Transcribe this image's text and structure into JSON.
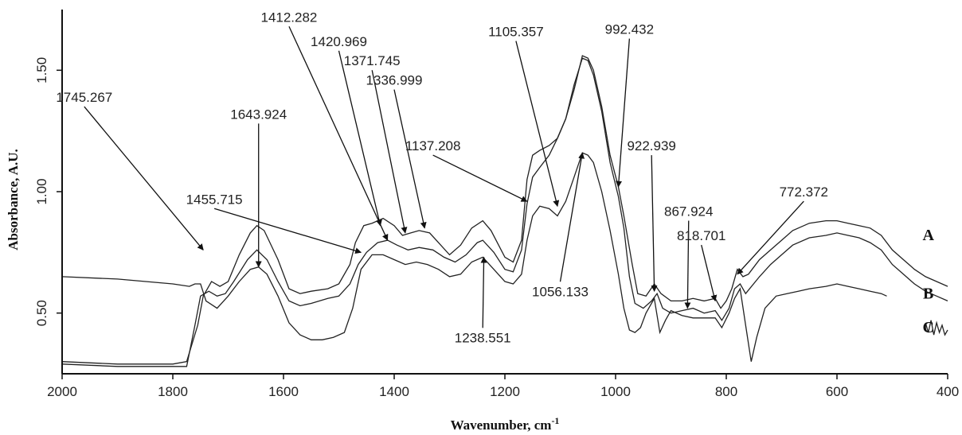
{
  "chart_data": {
    "type": "line",
    "xlabel": "Wavenumber, cm",
    "xlabel_superscript": "-1",
    "ylabel": "Absorbance, A.U.",
    "xlim": [
      2000,
      400
    ],
    "ylim": [
      0.25,
      1.75
    ],
    "x_ticks": [
      "2000",
      "1800",
      "1600",
      "1400",
      "1200",
      "1000",
      "800",
      "600",
      "400"
    ],
    "y_ticks": [
      "0.50",
      "1.00",
      "1.50"
    ],
    "grid": false,
    "series": [
      {
        "name": "A",
        "points": [
          [
            2000,
            0.3
          ],
          [
            1900,
            0.29
          ],
          [
            1800,
            0.29
          ],
          [
            1775,
            0.3
          ],
          [
            1755,
            0.45
          ],
          [
            1745,
            0.57
          ],
          [
            1730,
            0.63
          ],
          [
            1715,
            0.61
          ],
          [
            1700,
            0.63
          ],
          [
            1680,
            0.74
          ],
          [
            1660,
            0.83
          ],
          [
            1648,
            0.86
          ],
          [
            1635,
            0.84
          ],
          [
            1610,
            0.72
          ],
          [
            1590,
            0.6
          ],
          [
            1570,
            0.58
          ],
          [
            1550,
            0.59
          ],
          [
            1520,
            0.6
          ],
          [
            1500,
            0.62
          ],
          [
            1480,
            0.7
          ],
          [
            1470,
            0.79
          ],
          [
            1455,
            0.86
          ],
          [
            1440,
            0.87
          ],
          [
            1420,
            0.89
          ],
          [
            1400,
            0.86
          ],
          [
            1385,
            0.82
          ],
          [
            1370,
            0.83
          ],
          [
            1355,
            0.84
          ],
          [
            1336,
            0.83
          ],
          [
            1320,
            0.79
          ],
          [
            1300,
            0.74
          ],
          [
            1280,
            0.78
          ],
          [
            1260,
            0.85
          ],
          [
            1240,
            0.88
          ],
          [
            1225,
            0.84
          ],
          [
            1200,
            0.73
          ],
          [
            1185,
            0.71
          ],
          [
            1170,
            0.8
          ],
          [
            1160,
            1.05
          ],
          [
            1150,
            1.15
          ],
          [
            1137,
            1.17
          ],
          [
            1120,
            1.19
          ],
          [
            1105,
            1.22
          ],
          [
            1090,
            1.3
          ],
          [
            1075,
            1.42
          ],
          [
            1060,
            1.56
          ],
          [
            1050,
            1.55
          ],
          [
            1040,
            1.5
          ],
          [
            1025,
            1.35
          ],
          [
            1010,
            1.15
          ],
          [
            995,
            1.02
          ],
          [
            985,
            0.9
          ],
          [
            970,
            0.7
          ],
          [
            960,
            0.58
          ],
          [
            945,
            0.57
          ],
          [
            930,
            0.62
          ],
          [
            918,
            0.58
          ],
          [
            900,
            0.55
          ],
          [
            880,
            0.55
          ],
          [
            860,
            0.56
          ],
          [
            840,
            0.55
          ],
          [
            820,
            0.56
          ],
          [
            810,
            0.52
          ],
          [
            800,
            0.55
          ],
          [
            790,
            0.6
          ],
          [
            780,
            0.68
          ],
          [
            770,
            0.65
          ],
          [
            760,
            0.66
          ],
          [
            740,
            0.72
          ],
          [
            720,
            0.76
          ],
          [
            700,
            0.8
          ],
          [
            680,
            0.84
          ],
          [
            650,
            0.87
          ],
          [
            620,
            0.88
          ],
          [
            600,
            0.88
          ],
          [
            580,
            0.87
          ],
          [
            560,
            0.86
          ],
          [
            540,
            0.85
          ],
          [
            520,
            0.82
          ],
          [
            500,
            0.76
          ],
          [
            480,
            0.72
          ],
          [
            460,
            0.68
          ],
          [
            440,
            0.65
          ],
          [
            420,
            0.63
          ],
          [
            400,
            0.61
          ]
        ]
      },
      {
        "name": "B",
        "points": [
          [
            2000,
            0.29
          ],
          [
            1900,
            0.28
          ],
          [
            1800,
            0.28
          ],
          [
            1775,
            0.28
          ],
          [
            1760,
            0.45
          ],
          [
            1750,
            0.57
          ],
          [
            1735,
            0.59
          ],
          [
            1720,
            0.57
          ],
          [
            1705,
            0.58
          ],
          [
            1690,
            0.63
          ],
          [
            1665,
            0.72
          ],
          [
            1648,
            0.76
          ],
          [
            1630,
            0.72
          ],
          [
            1610,
            0.63
          ],
          [
            1590,
            0.55
          ],
          [
            1570,
            0.53
          ],
          [
            1550,
            0.54
          ],
          [
            1520,
            0.56
          ],
          [
            1500,
            0.57
          ],
          [
            1480,
            0.62
          ],
          [
            1465,
            0.7
          ],
          [
            1450,
            0.75
          ],
          [
            1430,
            0.79
          ],
          [
            1412,
            0.8
          ],
          [
            1395,
            0.78
          ],
          [
            1375,
            0.76
          ],
          [
            1355,
            0.77
          ],
          [
            1330,
            0.76
          ],
          [
            1310,
            0.73
          ],
          [
            1290,
            0.71
          ],
          [
            1270,
            0.74
          ],
          [
            1250,
            0.79
          ],
          [
            1240,
            0.8
          ],
          [
            1220,
            0.75
          ],
          [
            1200,
            0.68
          ],
          [
            1185,
            0.67
          ],
          [
            1170,
            0.76
          ],
          [
            1160,
            0.95
          ],
          [
            1150,
            1.06
          ],
          [
            1137,
            1.1
          ],
          [
            1120,
            1.15
          ],
          [
            1105,
            1.22
          ],
          [
            1090,
            1.3
          ],
          [
            1075,
            1.44
          ],
          [
            1060,
            1.55
          ],
          [
            1050,
            1.54
          ],
          [
            1040,
            1.48
          ],
          [
            1025,
            1.33
          ],
          [
            1010,
            1.12
          ],
          [
            995,
            0.98
          ],
          [
            985,
            0.85
          ],
          [
            975,
            0.65
          ],
          [
            965,
            0.54
          ],
          [
            950,
            0.52
          ],
          [
            935,
            0.55
          ],
          [
            925,
            0.58
          ],
          [
            915,
            0.52
          ],
          [
            900,
            0.5
          ],
          [
            880,
            0.51
          ],
          [
            860,
            0.52
          ],
          [
            840,
            0.5
          ],
          [
            820,
            0.51
          ],
          [
            808,
            0.47
          ],
          [
            795,
            0.52
          ],
          [
            785,
            0.6
          ],
          [
            775,
            0.62
          ],
          [
            765,
            0.58
          ],
          [
            740,
            0.65
          ],
          [
            720,
            0.7
          ],
          [
            700,
            0.74
          ],
          [
            680,
            0.78
          ],
          [
            650,
            0.81
          ],
          [
            620,
            0.82
          ],
          [
            600,
            0.83
          ],
          [
            580,
            0.82
          ],
          [
            560,
            0.81
          ],
          [
            540,
            0.79
          ],
          [
            520,
            0.76
          ],
          [
            500,
            0.7
          ],
          [
            480,
            0.66
          ],
          [
            460,
            0.62
          ],
          [
            440,
            0.59
          ],
          [
            420,
            0.57
          ],
          [
            400,
            0.55
          ]
        ]
      },
      {
        "name": "C",
        "points": [
          [
            2000,
            0.65
          ],
          [
            1900,
            0.64
          ],
          [
            1800,
            0.62
          ],
          [
            1770,
            0.61
          ],
          [
            1760,
            0.62
          ],
          [
            1750,
            0.62
          ],
          [
            1740,
            0.55
          ],
          [
            1720,
            0.52
          ],
          [
            1700,
            0.57
          ],
          [
            1680,
            0.63
          ],
          [
            1660,
            0.68
          ],
          [
            1645,
            0.69
          ],
          [
            1630,
            0.66
          ],
          [
            1610,
            0.57
          ],
          [
            1590,
            0.46
          ],
          [
            1570,
            0.41
          ],
          [
            1550,
            0.39
          ],
          [
            1530,
            0.39
          ],
          [
            1510,
            0.4
          ],
          [
            1490,
            0.42
          ],
          [
            1475,
            0.52
          ],
          [
            1460,
            0.68
          ],
          [
            1440,
            0.74
          ],
          [
            1420,
            0.74
          ],
          [
            1400,
            0.72
          ],
          [
            1380,
            0.7
          ],
          [
            1360,
            0.71
          ],
          [
            1340,
            0.7
          ],
          [
            1320,
            0.68
          ],
          [
            1300,
            0.65
          ],
          [
            1280,
            0.66
          ],
          [
            1260,
            0.71
          ],
          [
            1240,
            0.73
          ],
          [
            1220,
            0.68
          ],
          [
            1200,
            0.63
          ],
          [
            1185,
            0.62
          ],
          [
            1170,
            0.66
          ],
          [
            1160,
            0.8
          ],
          [
            1150,
            0.9
          ],
          [
            1137,
            0.94
          ],
          [
            1120,
            0.93
          ],
          [
            1105,
            0.9
          ],
          [
            1090,
            0.96
          ],
          [
            1075,
            1.06
          ],
          [
            1060,
            1.16
          ],
          [
            1050,
            1.15
          ],
          [
            1040,
            1.12
          ],
          [
            1025,
            1.0
          ],
          [
            1010,
            0.84
          ],
          [
            995,
            0.66
          ],
          [
            985,
            0.52
          ],
          [
            975,
            0.43
          ],
          [
            965,
            0.42
          ],
          [
            955,
            0.44
          ],
          [
            945,
            0.5
          ],
          [
            930,
            0.56
          ],
          [
            920,
            0.42
          ],
          [
            910,
            0.47
          ],
          [
            900,
            0.51
          ],
          [
            880,
            0.49
          ],
          [
            860,
            0.48
          ],
          [
            840,
            0.48
          ],
          [
            820,
            0.48
          ],
          [
            808,
            0.44
          ],
          [
            795,
            0.5
          ],
          [
            785,
            0.56
          ],
          [
            775,
            0.6
          ],
          [
            765,
            0.45
          ],
          [
            755,
            0.3
          ],
          [
            745,
            0.4
          ],
          [
            730,
            0.52
          ],
          [
            710,
            0.57
          ],
          [
            690,
            0.58
          ],
          [
            670,
            0.59
          ],
          [
            650,
            0.6
          ],
          [
            620,
            0.61
          ],
          [
            600,
            0.62
          ],
          [
            580,
            0.61
          ],
          [
            560,
            0.6
          ],
          [
            540,
            0.59
          ],
          [
            520,
            0.58
          ],
          [
            510,
            0.57
          ]
        ]
      }
    ],
    "series_label_positions": [
      {
        "name": "A",
        "x": 435,
        "y": 0.8
      },
      {
        "name": "B",
        "x": 435,
        "y": 0.56
      },
      {
        "name": "C",
        "x": 435,
        "y": 0.42
      }
    ],
    "trace_fragments": [
      {
        "points": [
          [
            440,
            0.46
          ],
          [
            435,
            0.42
          ],
          [
            430,
            0.47
          ],
          [
            425,
            0.41
          ],
          [
            420,
            0.46
          ],
          [
            415,
            0.42
          ],
          [
            410,
            0.45
          ],
          [
            405,
            0.41
          ],
          [
            400,
            0.43
          ]
        ]
      }
    ],
    "annotations": [
      {
        "text": "1745.267",
        "tip": [
          1745,
          0.76
        ],
        "label_at": [
          1960,
          1.37
        ]
      },
      {
        "text": "1643.924",
        "tip": [
          1645,
          0.69
        ],
        "label_at": [
          1645,
          1.3
        ]
      },
      {
        "text": "1455.715",
        "tip": [
          1460,
          0.75
        ],
        "label_at": [
          1725,
          0.95
        ]
      },
      {
        "text": "1412.282",
        "tip": [
          1412,
          0.8
        ],
        "label_at": [
          1590,
          1.7
        ]
      },
      {
        "text": "1420.969",
        "tip": [
          1425,
          0.86
        ],
        "label_at": [
          1500,
          1.6
        ]
      },
      {
        "text": "1371.745",
        "tip": [
          1380,
          0.83
        ],
        "label_at": [
          1440,
          1.52
        ]
      },
      {
        "text": "1336.999",
        "tip": [
          1345,
          0.85
        ],
        "label_at": [
          1400,
          1.44
        ]
      },
      {
        "text": "1238.551",
        "tip": [
          1238,
          0.73
        ],
        "label_at": [
          1240,
          0.38
        ]
      },
      {
        "text": "1137.208",
        "tip": [
          1160,
          0.96
        ],
        "label_at": [
          1330,
          1.17
        ]
      },
      {
        "text": "1105.357",
        "tip": [
          1105,
          0.94
        ],
        "label_at": [
          1180,
          1.64
        ]
      },
      {
        "text": "1056.133",
        "tip": [
          1060,
          1.16
        ],
        "label_at": [
          1100,
          0.57
        ]
      },
      {
        "text": "992.432",
        "tip": [
          995,
          1.02
        ],
        "label_at": [
          975,
          1.65
        ]
      },
      {
        "text": "922.939",
        "tip": [
          930,
          0.59
        ],
        "label_at": [
          935,
          1.17
        ]
      },
      {
        "text": "867.924",
        "tip": [
          870,
          0.52
        ],
        "label_at": [
          868,
          0.9
        ]
      },
      {
        "text": "818.701",
        "tip": [
          820,
          0.55
        ],
        "label_at": [
          845,
          0.8
        ]
      },
      {
        "text": "772.372",
        "tip": [
          780,
          0.66
        ],
        "label_at": [
          660,
          0.98
        ]
      }
    ]
  }
}
